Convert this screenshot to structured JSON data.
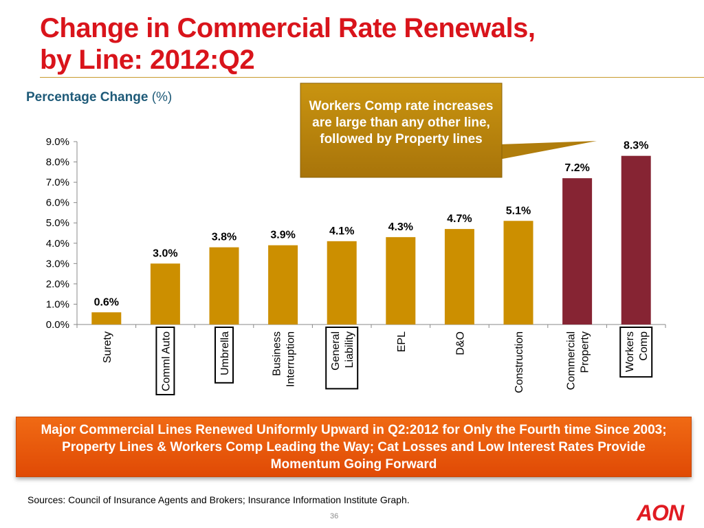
{
  "slide": {
    "title_line1": "Change in Commercial Rate Renewals,",
    "title_line2": "by Line:  2012:Q2",
    "subtitle": "Percentage Change",
    "subtitle_unit": "(%)",
    "callout": "Workers Comp rate increases are large than any other line, followed by Property lines",
    "banner": "Major Commercial Lines Renewed Uniformly Upward in Q2:2012 for Only the Fourth time Since 2003; Property Lines & Workers Comp Leading the Way; Cat Losses and Low Interest Rates Provide Momentum Going Forward",
    "sources": "Sources: Council of Insurance Agents and Brokers; Insurance Information Institute Graph.",
    "page_number": "36",
    "logo_text": "AON"
  },
  "colors": {
    "title": "#d9141b",
    "subtitle": "#1e5a78",
    "bar_gold": "#cc8f00",
    "bar_maroon": "#862433",
    "callout": "#b8860b",
    "banner": "#e8560c",
    "logo": "#e01b22"
  },
  "chart_data": {
    "type": "bar",
    "title": "",
    "xlabel": "",
    "ylabel": "",
    "ylim": [
      0,
      9
    ],
    "y_ticks": [
      "0.0%",
      "1.0%",
      "2.0%",
      "3.0%",
      "4.0%",
      "5.0%",
      "6.0%",
      "7.0%",
      "8.0%",
      "9.0%"
    ],
    "grid": false,
    "categories": [
      [
        "Surety"
      ],
      [
        "Comml Auto"
      ],
      [
        "Umbrella"
      ],
      [
        "Business",
        "Interruption"
      ],
      [
        "General",
        "Liability"
      ],
      [
        "EPL"
      ],
      [
        "D&O"
      ],
      [
        "Construction"
      ],
      [
        "Commercial",
        "Property"
      ],
      [
        "Workers",
        "Comp"
      ]
    ],
    "boxed_categories": [
      "Comml Auto",
      "Umbrella",
      "General Liability",
      "Workers Comp"
    ],
    "values": [
      0.6,
      3.0,
      3.8,
      3.9,
      4.1,
      4.3,
      4.7,
      5.1,
      7.2,
      8.3
    ],
    "value_labels": [
      "0.6%",
      "3.0%",
      "3.8%",
      "3.9%",
      "4.1%",
      "4.3%",
      "4.7%",
      "5.1%",
      "7.2%",
      "8.3%"
    ],
    "bar_color_keys": [
      "bar_gold",
      "bar_gold",
      "bar_gold",
      "bar_gold",
      "bar_gold",
      "bar_gold",
      "bar_gold",
      "bar_gold",
      "bar_maroon",
      "bar_maroon"
    ]
  }
}
